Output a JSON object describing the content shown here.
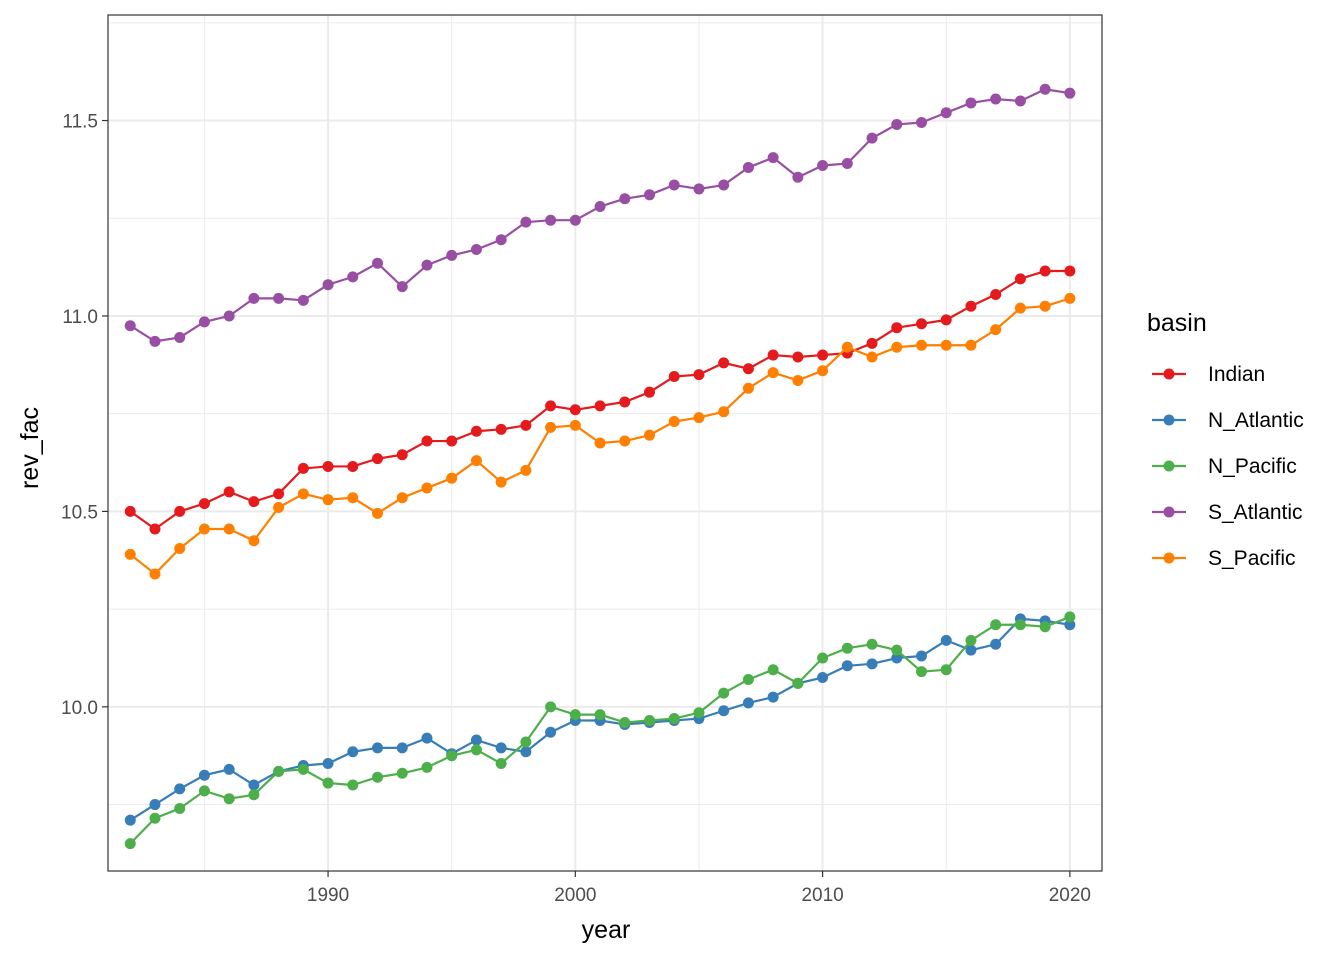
{
  "chart_data": {
    "type": "line",
    "title": "",
    "xlabel": "year",
    "ylabel": "rev_fac",
    "xlim": [
      1981.1,
      2021.3
    ],
    "ylim": [
      9.58,
      11.77
    ],
    "x_ticks": [
      1990,
      2000,
      2010,
      2020
    ],
    "x_tick_labels": [
      "1990",
      "2000",
      "2010",
      "2020"
    ],
    "y_ticks": [
      10.0,
      10.5,
      11.0,
      11.5
    ],
    "y_tick_labels": [
      "10.0",
      "10.5",
      "11.0",
      "11.5"
    ],
    "grid": true,
    "legend": {
      "title": "basin",
      "position": "right"
    },
    "x": [
      1982,
      1983,
      1984,
      1985,
      1986,
      1987,
      1988,
      1989,
      1990,
      1991,
      1992,
      1993,
      1994,
      1995,
      1996,
      1997,
      1998,
      1999,
      2000,
      2001,
      2002,
      2003,
      2004,
      2005,
      2006,
      2007,
      2008,
      2009,
      2010,
      2011,
      2012,
      2013,
      2014,
      2015,
      2016,
      2017,
      2018,
      2019,
      2020
    ],
    "series": [
      {
        "name": "Indian",
        "color": "#e41a1c",
        "values": [
          10.5,
          10.455,
          10.5,
          10.52,
          10.55,
          10.525,
          10.545,
          10.61,
          10.615,
          10.615,
          10.635,
          10.645,
          10.68,
          10.68,
          10.705,
          10.71,
          10.72,
          10.77,
          10.76,
          10.77,
          10.78,
          10.805,
          10.845,
          10.85,
          10.88,
          10.865,
          10.9,
          10.895,
          10.9,
          10.905,
          10.93,
          10.97,
          10.98,
          10.99,
          11.025,
          11.055,
          11.095,
          11.115,
          11.115
        ]
      },
      {
        "name": "N_Atlantic",
        "color": "#377eb8",
        "values": [
          9.71,
          9.75,
          9.79,
          9.825,
          9.84,
          9.8,
          9.835,
          9.85,
          9.855,
          9.885,
          9.895,
          9.895,
          9.92,
          9.88,
          9.915,
          9.895,
          9.885,
          9.935,
          9.965,
          9.965,
          9.955,
          9.96,
          9.965,
          9.97,
          9.99,
          10.01,
          10.025,
          10.06,
          10.075,
          10.105,
          10.11,
          10.125,
          10.13,
          10.17,
          10.145,
          10.16,
          10.225,
          10.22,
          10.21
        ]
      },
      {
        "name": "N_Pacific",
        "color": "#4daf4a",
        "values": [
          9.65,
          9.715,
          9.74,
          9.785,
          9.765,
          9.775,
          9.835,
          9.84,
          9.805,
          9.8,
          9.82,
          9.83,
          9.845,
          9.875,
          9.89,
          9.855,
          9.91,
          10.0,
          9.98,
          9.98,
          9.96,
          9.965,
          9.97,
          9.985,
          10.035,
          10.07,
          10.095,
          10.06,
          10.125,
          10.15,
          10.16,
          10.145,
          10.09,
          10.095,
          10.17,
          10.21,
          10.21,
          10.205,
          10.23
        ]
      },
      {
        "name": "S_Atlantic",
        "color": "#984ea3",
        "values": [
          10.975,
          10.935,
          10.945,
          10.985,
          11.0,
          11.045,
          11.045,
          11.04,
          11.08,
          11.1,
          11.135,
          11.075,
          11.13,
          11.155,
          11.17,
          11.195,
          11.24,
          11.245,
          11.245,
          11.28,
          11.3,
          11.31,
          11.335,
          11.325,
          11.335,
          11.38,
          11.405,
          11.355,
          11.385,
          11.39,
          11.455,
          11.49,
          11.495,
          11.52,
          11.545,
          11.555,
          11.55,
          11.58,
          11.57
        ]
      },
      {
        "name": "S_Pacific",
        "color": "#ff7f00",
        "values": [
          10.39,
          10.34,
          10.405,
          10.455,
          10.455,
          10.425,
          10.51,
          10.545,
          10.53,
          10.535,
          10.495,
          10.535,
          10.56,
          10.585,
          10.63,
          10.575,
          10.605,
          10.715,
          10.72,
          10.675,
          10.68,
          10.695,
          10.73,
          10.74,
          10.755,
          10.815,
          10.855,
          10.835,
          10.86,
          10.92,
          10.895,
          10.92,
          10.925,
          10.925,
          10.925,
          10.965,
          11.02,
          11.025,
          11.045
        ]
      }
    ]
  }
}
